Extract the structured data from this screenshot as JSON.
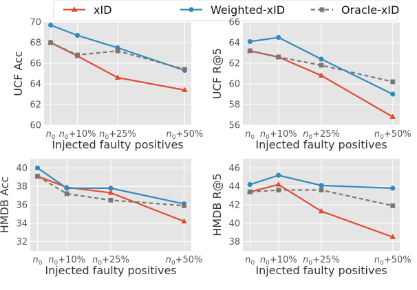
{
  "legend": {
    "placement": "top-center",
    "entries": [
      {
        "name": "xID",
        "color": "#e24a33",
        "marker": "triangle",
        "dash": false
      },
      {
        "name": "Weighted-xID",
        "color": "#348abd",
        "marker": "circle",
        "dash": false
      },
      {
        "name": "Oracle-xID",
        "color": "#777777",
        "marker": "square",
        "dash": true
      }
    ]
  },
  "chart_data": [
    {
      "type": "line",
      "xlabel": "Injected faulty positives",
      "ylabel": "UCF Acc",
      "x_ticks": [
        {
          "base": "n",
          "sub": "0",
          "suffix": ""
        },
        {
          "base": "n",
          "sub": "0",
          "suffix": "+10%"
        },
        {
          "base": "n",
          "sub": "0",
          "suffix": "+25%"
        },
        {
          "base": "n",
          "sub": "0",
          "suffix": "+50%"
        }
      ],
      "x": [
        0,
        10,
        25,
        50
      ],
      "ylim": [
        60,
        70
      ],
      "yticks": [
        60,
        62,
        64,
        66,
        68,
        70
      ],
      "grid": true,
      "series": [
        {
          "name": "xID",
          "values": [
            68.0,
            66.7,
            64.6,
            63.4
          ]
        },
        {
          "name": "Weighted-xID",
          "values": [
            69.7,
            68.7,
            67.5,
            65.3
          ]
        },
        {
          "name": "Oracle-xID",
          "values": [
            68.0,
            66.8,
            67.2,
            65.4
          ]
        }
      ]
    },
    {
      "type": "line",
      "xlabel": "Injected faulty positives",
      "ylabel": "UCF R@5",
      "x_ticks": [
        {
          "base": "n",
          "sub": "0",
          "suffix": ""
        },
        {
          "base": "n",
          "sub": "0",
          "suffix": "+10%"
        },
        {
          "base": "n",
          "sub": "0",
          "suffix": "+25%"
        },
        {
          "base": "n",
          "sub": "0",
          "suffix": "+50%"
        }
      ],
      "x": [
        0,
        10,
        25,
        50
      ],
      "ylim": [
        56,
        66
      ],
      "yticks": [
        56,
        58,
        60,
        62,
        64,
        66
      ],
      "grid": true,
      "series": [
        {
          "name": "xID",
          "values": [
            63.2,
            62.6,
            60.8,
            56.8
          ]
        },
        {
          "name": "Weighted-xID",
          "values": [
            64.1,
            64.5,
            62.4,
            59.0
          ]
        },
        {
          "name": "Oracle-xID",
          "values": [
            63.2,
            62.6,
            61.8,
            60.2
          ]
        }
      ]
    },
    {
      "type": "line",
      "xlabel": "Injected faulty positives",
      "ylabel": "HMDB Acc",
      "x_ticks": [
        {
          "base": "n",
          "sub": "0",
          "suffix": ""
        },
        {
          "base": "n",
          "sub": "0",
          "suffix": "+10%"
        },
        {
          "base": "n",
          "sub": "0",
          "suffix": "+25%"
        },
        {
          "base": "n",
          "sub": "0",
          "suffix": "+50%"
        }
      ],
      "x": [
        0,
        10,
        25,
        50
      ],
      "ylim": [
        31,
        41
      ],
      "yticks": [
        32,
        34,
        36,
        38,
        40
      ],
      "grid": true,
      "series": [
        {
          "name": "xID",
          "values": [
            39.1,
            37.9,
            37.3,
            34.2
          ]
        },
        {
          "name": "Weighted-xID",
          "values": [
            40.0,
            37.8,
            37.8,
            36.1
          ]
        },
        {
          "name": "Oracle-xID",
          "values": [
            39.1,
            37.2,
            36.5,
            35.9
          ]
        }
      ]
    },
    {
      "type": "line",
      "xlabel": "Injected faulty positives",
      "ylabel": "HMDB R@5",
      "x_ticks": [
        {
          "base": "n",
          "sub": "0",
          "suffix": ""
        },
        {
          "base": "n",
          "sub": "0",
          "suffix": "+10%"
        },
        {
          "base": "n",
          "sub": "0",
          "suffix": "+25%"
        },
        {
          "base": "n",
          "sub": "0",
          "suffix": "+50%"
        }
      ],
      "x": [
        0,
        10,
        25,
        50
      ],
      "ylim": [
        37,
        47
      ],
      "yticks": [
        38,
        40,
        42,
        44,
        46
      ],
      "grid": true,
      "series": [
        {
          "name": "xID",
          "values": [
            43.4,
            44.2,
            41.3,
            38.5
          ]
        },
        {
          "name": "Weighted-xID",
          "values": [
            44.2,
            45.2,
            44.1,
            43.8
          ]
        },
        {
          "name": "Oracle-xID",
          "values": [
            43.4,
            43.6,
            43.6,
            41.9
          ]
        }
      ]
    }
  ]
}
